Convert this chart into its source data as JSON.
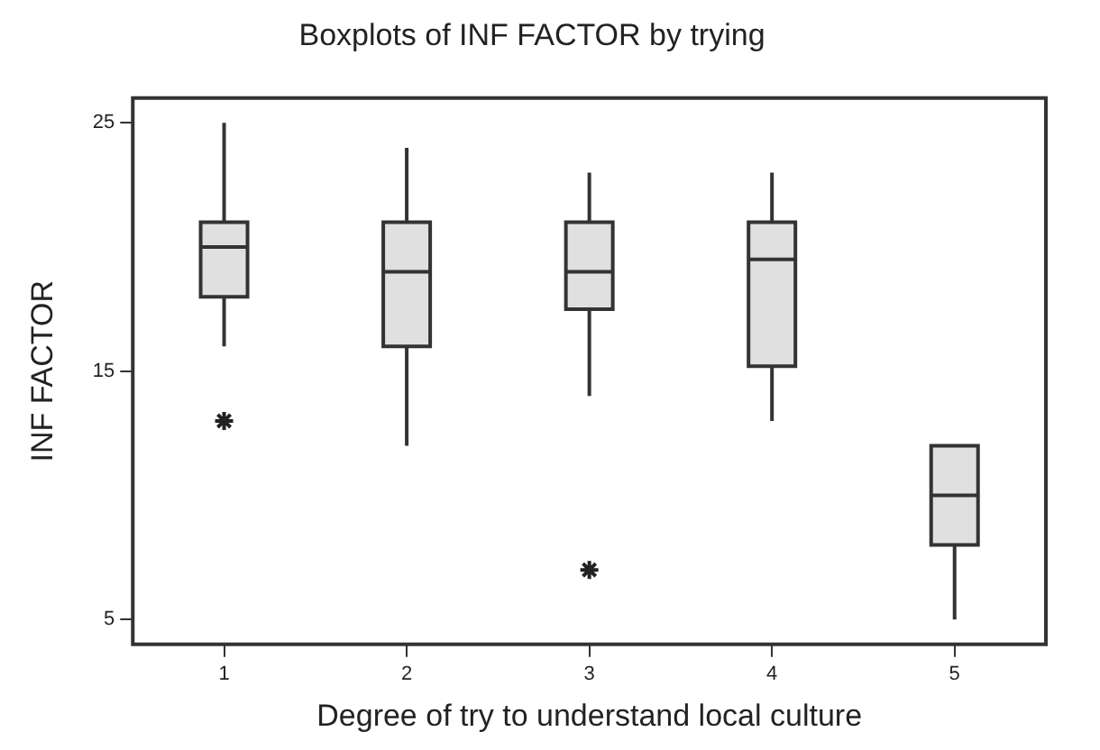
{
  "chart_data": {
    "type": "box",
    "title": "Boxplots of INF FACTOR by trying",
    "xlabel": "Degree of try to understand local culture",
    "ylabel": "INF FACTOR",
    "categories": [
      "1",
      "2",
      "3",
      "4",
      "5"
    ],
    "color": "#e0e0e0",
    "marker": "star",
    "grid": false,
    "legend": false,
    "ylim": [
      4,
      26
    ],
    "yticks": [
      5,
      15,
      25
    ],
    "boxes": [
      {
        "low": 16,
        "q1": 18,
        "median": 20,
        "q3": 21,
        "high": 25,
        "outliers": [
          13
        ]
      },
      {
        "low": 12,
        "q1": 16,
        "median": 19,
        "q3": 21,
        "high": 24
      },
      {
        "low": 14,
        "q1": 17.5,
        "median": 19,
        "q3": 21,
        "high": 23,
        "outliers": [
          7
        ]
      },
      {
        "low": 13,
        "q1": 15.2,
        "median": 19.5,
        "q3": 21,
        "high": 23
      },
      {
        "low": 5,
        "q1": 8,
        "median": 10,
        "q3": 12,
        "high": 12
      }
    ]
  }
}
